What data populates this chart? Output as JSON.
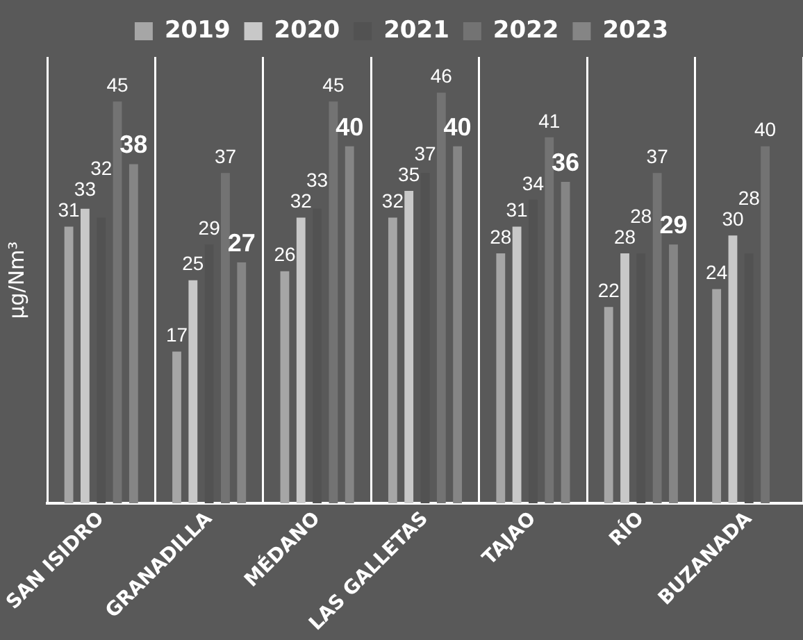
{
  "chart_data": {
    "type": "bar",
    "ylabel": "µg/Nm³",
    "categories": [
      "SAN ISIDRO",
      "GRANADILLA",
      "MÉDANO",
      "LAS GALLETAS",
      "TAJAO",
      "RÍO",
      "BUZANADA"
    ],
    "series": [
      {
        "name": "2019",
        "color": "#a6a6a6",
        "values": [
          31,
          17,
          26,
          32,
          28,
          22,
          24
        ]
      },
      {
        "name": "2020",
        "color": "#c8c8c8",
        "values": [
          33,
          25,
          32,
          35,
          31,
          28,
          30
        ]
      },
      {
        "name": "2021",
        "color": "#525252",
        "values": [
          32,
          29,
          33,
          37,
          34,
          28,
          28
        ]
      },
      {
        "name": "2022",
        "color": "#737373",
        "values": [
          45,
          37,
          45,
          46,
          41,
          37,
          40
        ]
      },
      {
        "name": "2023",
        "color": "#858585",
        "values": [
          38,
          27,
          40,
          40,
          36,
          29,
          null
        ]
      }
    ],
    "ylim": [
      0,
      50
    ],
    "data_labels": true,
    "legend": "top",
    "grid": "x",
    "tick_labels": "x"
  }
}
